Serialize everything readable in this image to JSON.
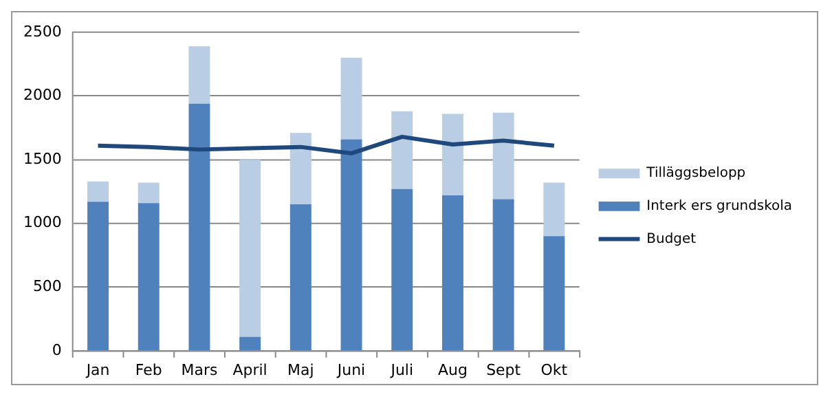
{
  "chart_data": {
    "type": "bar",
    "stacked": true,
    "categories": [
      "Jan",
      "Feb",
      "Mars",
      "April",
      "Maj",
      "Juni",
      "Juli",
      "Aug",
      "Sept",
      "Okt"
    ],
    "series": [
      {
        "name": "Interk ers grundskola",
        "color": "#4f81bd",
        "values": [
          1170,
          1160,
          1940,
          110,
          1150,
          1660,
          1270,
          1220,
          1190,
          900
        ]
      },
      {
        "name": "Tilläggsbelopp",
        "color": "#b9cde5",
        "values": [
          160,
          160,
          450,
          1390,
          560,
          640,
          610,
          640,
          680,
          420
        ]
      },
      {
        "name": "Budget",
        "type": "line",
        "color": "#1f497d",
        "values": [
          1610,
          1600,
          1580,
          1590,
          1600,
          1550,
          1680,
          1620,
          1650,
          1610
        ]
      }
    ],
    "ylim": [
      0,
      2500
    ],
    "yticks": [
      0,
      500,
      1000,
      1500,
      2000,
      2500
    ],
    "grid": "y",
    "legend": "right",
    "marker": "none"
  }
}
